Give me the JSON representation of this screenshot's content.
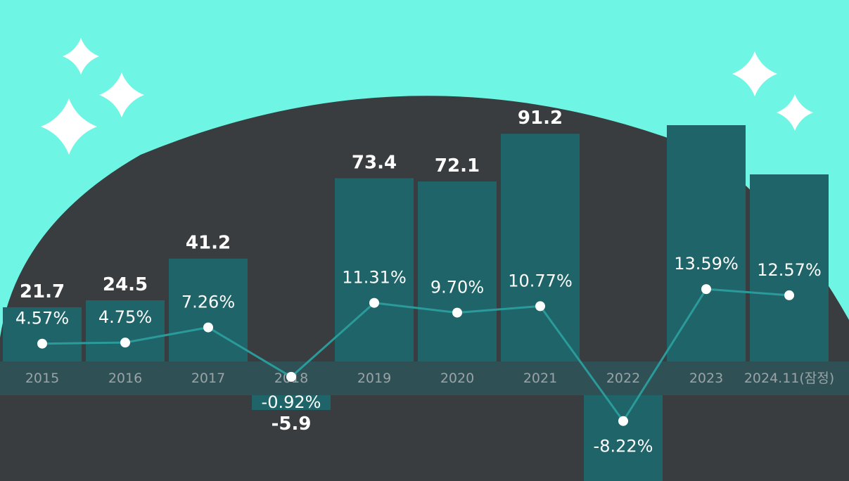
{
  "chart_data": {
    "type": "bar",
    "categories": [
      "2015",
      "2016",
      "2017",
      "2018",
      "2019",
      "2020",
      "2021",
      "2022",
      "2023",
      "2024.11(잠정)"
    ],
    "series": [
      {
        "type": "bar",
        "values": [
          21.7,
          24.5,
          41.2,
          -5.9,
          73.4,
          72.1,
          91.2,
          null,
          null,
          null
        ],
        "labels": [
          "21.7",
          "24.5",
          "41.2",
          "-5.9",
          "73.4",
          "72.1",
          "91.2",
          "",
          "",
          ""
        ]
      },
      {
        "type": "line",
        "values": [
          4.57,
          4.75,
          7.26,
          -0.92,
          11.31,
          9.7,
          10.77,
          -8.22,
          13.59,
          12.57
        ],
        "labels": [
          "4.57%",
          "4.75%",
          "7.26%",
          "-0.92%",
          "11.31%",
          "9.70%",
          "10.77%",
          "-8.22%",
          "13.59%",
          "12.57%"
        ]
      }
    ],
    "colors": {
      "background": "#6ef5e4",
      "dome": "#3a3d40",
      "bar": "#1f6468",
      "axis_band": "#2f5055",
      "line": "#2a9a9a",
      "marker": "#ffffff",
      "sparkle": "#ffffff"
    },
    "decorations": [
      "sparkle-icon",
      "sparkle-icon",
      "sparkle-icon",
      "sparkle-icon",
      "sparkle-icon"
    ]
  }
}
